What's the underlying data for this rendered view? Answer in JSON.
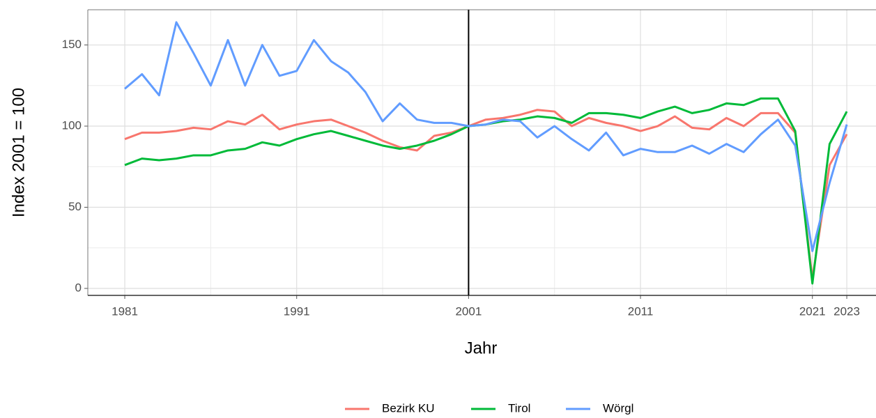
{
  "chart_data": {
    "type": "line",
    "x_label": "Jahr",
    "y_label": "Index 2001 = 100",
    "x": [
      1981,
      1982,
      1983,
      1984,
      1985,
      1986,
      1987,
      1988,
      1989,
      1990,
      1991,
      1992,
      1993,
      1994,
      1995,
      1996,
      1997,
      1998,
      1999,
      2000,
      2001,
      2002,
      2003,
      2004,
      2005,
      2006,
      2007,
      2008,
      2009,
      2010,
      2011,
      2012,
      2013,
      2014,
      2015,
      2016,
      2017,
      2018,
      2019,
      2020,
      2021,
      2022,
      2023
    ],
    "series": [
      {
        "name": "Bezirk KU",
        "color": "#F8766D",
        "values": [
          92,
          96,
          96,
          97,
          99,
          98,
          103,
          101,
          107,
          98,
          101,
          103,
          104,
          100,
          96,
          91,
          87,
          85,
          94,
          96,
          100,
          104,
          105,
          107,
          110,
          109,
          100,
          105,
          102,
          100,
          97,
          100,
          106,
          99,
          98,
          105,
          100,
          108,
          108,
          96,
          6,
          76,
          95
        ]
      },
      {
        "name": "Tirol",
        "color": "#00BA38",
        "values": [
          76,
          80,
          79,
          80,
          82,
          82,
          85,
          86,
          90,
          88,
          92,
          95,
          97,
          94,
          91,
          88,
          86,
          88,
          91,
          95,
          100,
          101,
          103,
          104,
          106,
          105,
          102,
          108,
          108,
          107,
          105,
          109,
          112,
          108,
          110,
          114,
          113,
          117,
          117,
          97,
          3,
          89,
          109
        ]
      },
      {
        "name": "Wörgl",
        "color": "#619CFF",
        "values": [
          123,
          132,
          119,
          164,
          145,
          125,
          153,
          125,
          150,
          131,
          134,
          153,
          140,
          133,
          121,
          103,
          114,
          104,
          102,
          102,
          100,
          101,
          104,
          103,
          93,
          100,
          92,
          85,
          96,
          82,
          86,
          84,
          84,
          88,
          83,
          89,
          84,
          95,
          104,
          88,
          23,
          65,
          101
        ]
      }
    ],
    "xlim": [
      1978.85,
      2024.7
    ],
    "xticks": [
      1981,
      1991,
      2001,
      2011,
      2021,
      2023
    ],
    "xminorticks": [
      1986,
      1996,
      2006,
      2016
    ],
    "ylim": [
      -4.3,
      171.7
    ],
    "yticks": [
      0,
      50,
      100,
      150
    ],
    "yminorticks": [
      25,
      75,
      125
    ],
    "vline": 2001,
    "grid": true,
    "legend": "bottom"
  }
}
